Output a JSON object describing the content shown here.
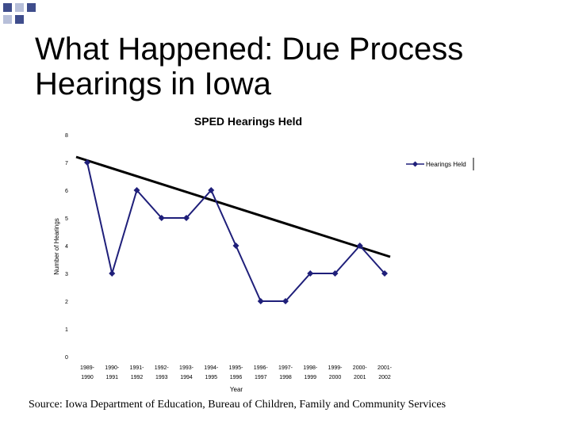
{
  "slide": {
    "title_line1": "What Happened: Due Process",
    "title_line2": "Hearings in Iowa",
    "source": "Source:  Iowa Department of Education, Bureau of Children, Family and Community Services"
  },
  "colors": {
    "series": "#1f1f7a",
    "trendline": "#000000",
    "decoration_dark": "#3f4d8c",
    "decoration_light": "#b7bfd9"
  },
  "chart_data": {
    "type": "line",
    "title": "SPED Hearings Held",
    "xlabel": "Year",
    "ylabel": "Number of Hearings",
    "ylim": [
      0,
      8
    ],
    "yticks": [
      "0",
      "1",
      "2",
      "3",
      "4",
      "5",
      "6",
      "7",
      "8"
    ],
    "categories": [
      [
        "1989-",
        "1990"
      ],
      [
        "1990-",
        "1991"
      ],
      [
        "1991-",
        "1992"
      ],
      [
        "1992-",
        "1993"
      ],
      [
        "1993-",
        "1994"
      ],
      [
        "1994-",
        "1995"
      ],
      [
        "1995-",
        "1996"
      ],
      [
        "1996-",
        "1997"
      ],
      [
        "1997-",
        "1998"
      ],
      [
        "1998-",
        "1999"
      ],
      [
        "1999-",
        "2000"
      ],
      [
        "2000-",
        "2001"
      ],
      [
        "2001-",
        "2002"
      ]
    ],
    "series": [
      {
        "name": "Hearings Held",
        "values": [
          7,
          3,
          6,
          5,
          5,
          6,
          4,
          2,
          2,
          3,
          3,
          4,
          3
        ]
      }
    ],
    "trendline": {
      "start": 7.2,
      "end": 3.6
    },
    "legend_position": "top-right",
    "grid": false
  }
}
